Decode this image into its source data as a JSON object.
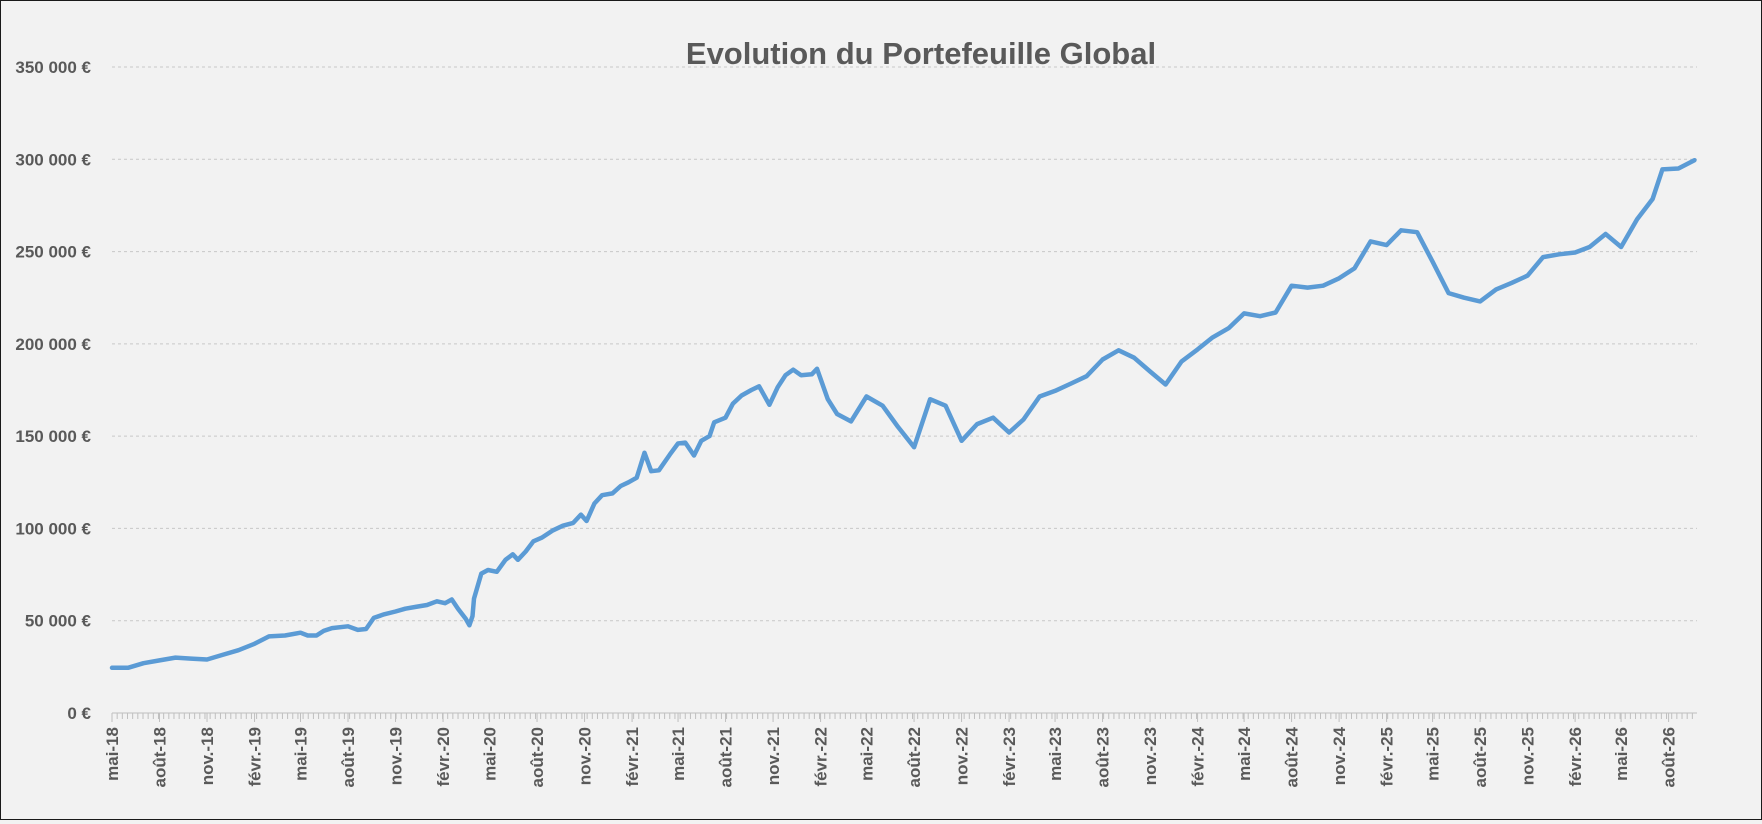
{
  "chart_data": {
    "type": "line",
    "title": "Evolution du Portefeuille Global",
    "xlabel": "",
    "ylabel": "",
    "ylim": [
      0,
      350000
    ],
    "grid": true,
    "legend": "none",
    "colors": {
      "line": "#5b9bd5",
      "background": "#f2f2f2",
      "text": "#595959"
    },
    "y_ticks": [
      {
        "value": 0,
        "label": "0 €"
      },
      {
        "value": 50000,
        "label": "50 000 €"
      },
      {
        "value": 100000,
        "label": "100 000 €"
      },
      {
        "value": 150000,
        "label": "150 000 €"
      },
      {
        "value": 200000,
        "label": "200 000 €"
      },
      {
        "value": 250000,
        "label": "250 000 €"
      },
      {
        "value": 300000,
        "label": "300 000 €"
      },
      {
        "value": 350000,
        "label": "350 000 €"
      }
    ],
    "x_ticks": [
      {
        "date": "2018-05",
        "label": "mai-18"
      },
      {
        "date": "2018-08",
        "label": "août-18"
      },
      {
        "date": "2018-11",
        "label": "nov.-18"
      },
      {
        "date": "2019-02",
        "label": "févr.-19"
      },
      {
        "date": "2019-05",
        "label": "mai-19"
      },
      {
        "date": "2019-08",
        "label": "août-19"
      },
      {
        "date": "2019-11",
        "label": "nov.-19"
      },
      {
        "date": "2020-02",
        "label": "févr.-20"
      },
      {
        "date": "2020-05",
        "label": "mai-20"
      },
      {
        "date": "2020-08",
        "label": "août-20"
      },
      {
        "date": "2020-11",
        "label": "nov.-20"
      },
      {
        "date": "2021-02",
        "label": "févr.-21"
      },
      {
        "date": "2021-05",
        "label": "mai-21"
      },
      {
        "date": "2021-08",
        "label": "août-21"
      },
      {
        "date": "2021-11",
        "label": "nov.-21"
      },
      {
        "date": "2022-02",
        "label": "févr.-22"
      },
      {
        "date": "2022-05",
        "label": "mai-22"
      },
      {
        "date": "2022-08",
        "label": "août-22"
      },
      {
        "date": "2022-11",
        "label": "nov.-22"
      },
      {
        "date": "2023-02",
        "label": "févr.-23"
      },
      {
        "date": "2023-05",
        "label": "mai-23"
      },
      {
        "date": "2023-08",
        "label": "août-23"
      },
      {
        "date": "2023-11",
        "label": "nov.-23"
      },
      {
        "date": "2024-02",
        "label": "févr.-24"
      },
      {
        "date": "2024-05",
        "label": "mai-24"
      },
      {
        "date": "2024-08",
        "label": "août-24"
      },
      {
        "date": "2024-11",
        "label": "nov.-24"
      },
      {
        "date": "2025-02",
        "label": "févr.-25"
      },
      {
        "date": "2025-05",
        "label": "mai-25"
      },
      {
        "date": "2025-08",
        "label": "août-25"
      },
      {
        "date": "2025-11",
        "label": "nov.-25"
      },
      {
        "date": "2026-02",
        "label": "févr.-26"
      },
      {
        "date": "2026-05",
        "label": "mai-26"
      },
      {
        "date": "2026-08",
        "label": "août-26"
      }
    ],
    "series": [
      {
        "points": [
          [
            "2018-05-01",
            24500
          ],
          [
            "2018-06-01",
            24500
          ],
          [
            "2018-07-01",
            27000
          ],
          [
            "2018-08-01",
            28500
          ],
          [
            "2018-09-01",
            30000
          ],
          [
            "2018-10-01",
            29500
          ],
          [
            "2018-11-01",
            29000
          ],
          [
            "2018-12-01",
            31500
          ],
          [
            "2019-01-01",
            34000
          ],
          [
            "2019-02-01",
            37500
          ],
          [
            "2019-03-01",
            41500
          ],
          [
            "2019-04-01",
            42000
          ],
          [
            "2019-05-01",
            43500
          ],
          [
            "2019-05-15",
            42000
          ],
          [
            "2019-06-01",
            42000
          ],
          [
            "2019-06-15",
            44500
          ],
          [
            "2019-07-01",
            46000
          ],
          [
            "2019-08-01",
            47000
          ],
          [
            "2019-08-20",
            45000
          ],
          [
            "2019-09-05",
            45500
          ],
          [
            "2019-09-20",
            51500
          ],
          [
            "2019-10-10",
            53500
          ],
          [
            "2019-11-01",
            55000
          ],
          [
            "2019-11-20",
            56500
          ],
          [
            "2019-12-10",
            57500
          ],
          [
            "2020-01-01",
            58500
          ],
          [
            "2020-01-20",
            60500
          ],
          [
            "2020-02-05",
            59500
          ],
          [
            "2020-02-18",
            61500
          ],
          [
            "2020-03-01",
            56500
          ],
          [
            "2020-03-16",
            51000
          ],
          [
            "2020-03-23",
            47500
          ],
          [
            "2020-03-29",
            52500
          ],
          [
            "2020-04-01",
            62000
          ],
          [
            "2020-04-15",
            75500
          ],
          [
            "2020-04-28",
            77500
          ],
          [
            "2020-05-15",
            76500
          ],
          [
            "2020-06-01",
            83000
          ],
          [
            "2020-06-15",
            86000
          ],
          [
            "2020-06-25",
            83000
          ],
          [
            "2020-07-10",
            87500
          ],
          [
            "2020-07-25",
            93000
          ],
          [
            "2020-08-10",
            95000
          ],
          [
            "2020-09-01",
            99000
          ],
          [
            "2020-09-20",
            101500
          ],
          [
            "2020-10-10",
            103000
          ],
          [
            "2020-10-25",
            107500
          ],
          [
            "2020-11-05",
            104000
          ],
          [
            "2020-11-20",
            113500
          ],
          [
            "2020-12-05",
            118000
          ],
          [
            "2020-12-25",
            119000
          ],
          [
            "2021-01-10",
            123000
          ],
          [
            "2021-01-25",
            125000
          ],
          [
            "2021-02-10",
            127500
          ],
          [
            "2021-02-25",
            141000
          ],
          [
            "2021-03-10",
            131000
          ],
          [
            "2021-03-25",
            131500
          ],
          [
            "2021-04-15",
            140000
          ],
          [
            "2021-05-01",
            146000
          ],
          [
            "2021-05-15",
            146500
          ],
          [
            "2021-06-01",
            139500
          ],
          [
            "2021-06-15",
            147500
          ],
          [
            "2021-07-01",
            150000
          ],
          [
            "2021-07-10",
            157500
          ],
          [
            "2021-08-01",
            160000
          ],
          [
            "2021-08-15",
            167500
          ],
          [
            "2021-09-01",
            172000
          ],
          [
            "2021-09-20",
            175000
          ],
          [
            "2021-10-05",
            177000
          ],
          [
            "2021-10-25",
            167000
          ],
          [
            "2021-11-10",
            176500
          ],
          [
            "2021-11-25",
            183000
          ],
          [
            "2021-12-10",
            186000
          ],
          [
            "2021-12-25",
            183000
          ],
          [
            "2022-01-15",
            183500
          ],
          [
            "2022-01-25",
            186500
          ],
          [
            "2022-02-15",
            170000
          ],
          [
            "2022-03-05",
            162000
          ],
          [
            "2022-04-01",
            158000
          ],
          [
            "2022-05-01",
            171500
          ],
          [
            "2022-06-01",
            166500
          ],
          [
            "2022-07-01",
            155000
          ],
          [
            "2022-08-01",
            144000
          ],
          [
            "2022-09-01",
            170000
          ],
          [
            "2022-10-01",
            166500
          ],
          [
            "2022-11-01",
            147500
          ],
          [
            "2022-12-01",
            156500
          ],
          [
            "2023-01-01",
            160000
          ],
          [
            "2023-02-01",
            152000
          ],
          [
            "2023-03-01",
            159000
          ],
          [
            "2023-04-01",
            171500
          ],
          [
            "2023-05-01",
            174500
          ],
          [
            "2023-06-01",
            178500
          ],
          [
            "2023-07-01",
            182500
          ],
          [
            "2023-08-01",
            191500
          ],
          [
            "2023-09-01",
            196500
          ],
          [
            "2023-10-01",
            192500
          ],
          [
            "2023-11-01",
            185000
          ],
          [
            "2023-12-01",
            178000
          ],
          [
            "2024-01-01",
            190500
          ],
          [
            "2024-02-01",
            197000
          ],
          [
            "2024-03-01",
            203500
          ],
          [
            "2024-04-01",
            208500
          ],
          [
            "2024-05-01",
            216500
          ],
          [
            "2024-06-01",
            215000
          ],
          [
            "2024-07-01",
            217000
          ],
          [
            "2024-08-01",
            231500
          ],
          [
            "2024-09-01",
            230500
          ],
          [
            "2024-10-01",
            231500
          ],
          [
            "2024-11-01",
            235500
          ],
          [
            "2024-12-01",
            241000
          ],
          [
            "2025-01-01",
            255500
          ],
          [
            "2025-02-01",
            253500
          ],
          [
            "2025-03-01",
            261500
          ],
          [
            "2025-04-01",
            260500
          ],
          [
            "2025-05-01",
            244500
          ],
          [
            "2025-06-01",
            227500
          ],
          [
            "2025-07-01",
            225000
          ],
          [
            "2025-08-01",
            223000
          ],
          [
            "2025-09-01",
            229500
          ],
          [
            "2025-10-01",
            233000
          ],
          [
            "2025-11-01",
            237000
          ],
          [
            "2025-12-01",
            247000
          ],
          [
            "2026-01-01",
            248500
          ],
          [
            "2026-02-01",
            249500
          ],
          [
            "2026-03-01",
            252500
          ],
          [
            "2026-04-01",
            259500
          ],
          [
            "2026-05-01",
            252500
          ],
          [
            "2026-06-01",
            267500
          ],
          [
            "2026-07-01",
            278500
          ],
          [
            "2026-07-20",
            294500
          ],
          [
            "2026-08-20",
            295000
          ],
          [
            "2026-09-20",
            299500
          ]
        ]
      }
    ]
  }
}
